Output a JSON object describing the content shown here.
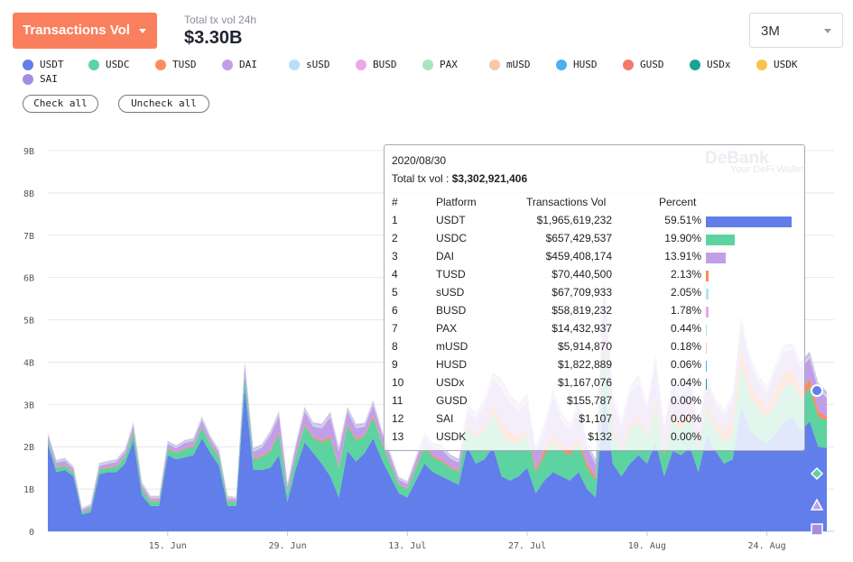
{
  "header": {
    "metric_label": "Transactions Vol",
    "total_label": "Total tx vol 24h",
    "total_value": "$3.30B",
    "range_label": "3M"
  },
  "legend": [
    {
      "name": "USDT",
      "color": "#627eea"
    },
    {
      "name": "USDC",
      "color": "#5cd3a0"
    },
    {
      "name": "TUSD",
      "color": "#fb8c5c"
    },
    {
      "name": "DAI",
      "color": "#c39ee8"
    },
    {
      "name": "sUSD",
      "color": "#b5e0f7"
    },
    {
      "name": "BUSD",
      "color": "#eda7e6"
    },
    {
      "name": "PAX",
      "color": "#a8e5c0"
    },
    {
      "name": "mUSD",
      "color": "#f8c8a8"
    },
    {
      "name": "HUSD",
      "color": "#4ab0ee"
    },
    {
      "name": "GUSD",
      "color": "#f27a6a"
    },
    {
      "name": "USDx",
      "color": "#1aa394"
    },
    {
      "name": "USDK",
      "color": "#f7c34a"
    },
    {
      "name": "SAI",
      "color": "#a48ee0"
    }
  ],
  "buttons": {
    "check_all": "Check all",
    "uncheck_all": "Uncheck all"
  },
  "chart_data": {
    "type": "area",
    "y_ticks": [
      "0",
      "1B",
      "2B",
      "3B",
      "4B",
      "5B",
      "6B",
      "7B",
      "8B",
      "9B"
    ],
    "ylim": [
      0,
      9
    ],
    "y_unit": "B",
    "x_ticks": [
      {
        "label": "15. Jun",
        "day": 14
      },
      {
        "label": "29. Jun",
        "day": 28
      },
      {
        "label": "13. Jul",
        "day": 42
      },
      {
        "label": "27. Jul",
        "day": 56
      },
      {
        "label": "10. Aug",
        "day": 70
      },
      {
        "label": "24. Aug",
        "day": 84
      }
    ],
    "grid": true,
    "series": [
      {
        "name": "USDT",
        "color": "#627eea",
        "values": [
          2.05,
          1.4,
          1.45,
          1.3,
          0.4,
          0.45,
          1.35,
          1.4,
          1.4,
          1.6,
          2.15,
          0.85,
          0.6,
          0.6,
          1.8,
          1.7,
          1.75,
          1.8,
          2.2,
          1.85,
          1.55,
          0.6,
          0.6,
          3.4,
          1.45,
          1.45,
          1.5,
          1.8,
          0.7,
          1.5,
          2.1,
          1.85,
          1.6,
          1.3,
          0.8,
          1.9,
          1.65,
          1.85,
          2.2,
          1.7,
          1.3,
          0.9,
          0.8,
          1.2,
          1.6,
          1.4,
          1.3,
          1.2,
          1.1,
          2.0,
          1.6,
          1.7,
          2.0,
          1.3,
          1.2,
          1.3,
          1.5,
          0.9,
          1.2,
          1.4,
          1.3,
          1.2,
          1.4,
          1.0,
          0.8,
          3.3,
          1.6,
          1.3,
          1.6,
          1.8,
          1.6,
          2.1,
          1.3,
          1.9,
          1.8,
          2.0,
          1.4,
          2.3,
          1.9,
          1.6,
          1.7,
          3.0,
          2.4,
          2.2,
          2.1,
          2.3,
          2.6,
          2.7,
          2.4,
          2.6,
          2.0,
          1.97
        ]
      },
      {
        "name": "USDC",
        "color": "#5cd3a0",
        "values": [
          0.1,
          0.1,
          0.1,
          0.08,
          0.05,
          0.08,
          0.1,
          0.1,
          0.12,
          0.15,
          0.2,
          0.15,
          0.1,
          0.1,
          0.15,
          0.15,
          0.2,
          0.2,
          0.25,
          0.2,
          0.2,
          0.1,
          0.1,
          0.3,
          0.25,
          0.3,
          0.4,
          0.5,
          0.2,
          0.3,
          0.4,
          0.35,
          0.5,
          0.9,
          0.7,
          0.6,
          0.5,
          0.4,
          0.5,
          0.4,
          0.3,
          0.2,
          0.2,
          0.3,
          0.4,
          0.35,
          0.35,
          0.3,
          0.3,
          0.5,
          0.6,
          0.7,
          0.8,
          1.0,
          0.9,
          0.8,
          0.8,
          0.5,
          0.6,
          0.7,
          0.6,
          0.6,
          0.7,
          0.5,
          0.4,
          1.0,
          0.7,
          0.6,
          0.8,
          0.8,
          0.6,
          0.8,
          0.5,
          0.7,
          0.6,
          0.7,
          0.5,
          0.6,
          0.5,
          0.5,
          0.6,
          0.9,
          0.8,
          0.7,
          0.6,
          0.7,
          0.8,
          0.8,
          0.7,
          0.8,
          0.7,
          0.66
        ]
      },
      {
        "name": "TUSD",
        "color": "#fb8c5c",
        "values": [
          0.02,
          0.02,
          0.02,
          0.02,
          0.01,
          0.01,
          0.02,
          0.02,
          0.02,
          0.02,
          0.03,
          0.02,
          0.02,
          0.02,
          0.02,
          0.02,
          0.02,
          0.02,
          0.03,
          0.02,
          0.02,
          0.02,
          0.01,
          0.03,
          0.03,
          0.03,
          0.03,
          0.04,
          0.02,
          0.03,
          0.04,
          0.03,
          0.04,
          0.05,
          0.04,
          0.04,
          0.04,
          0.03,
          0.04,
          0.03,
          0.03,
          0.02,
          0.02,
          0.03,
          0.04,
          0.04,
          0.04,
          0.03,
          0.03,
          0.05,
          0.08,
          0.1,
          0.2,
          0.3,
          0.25,
          0.15,
          0.1,
          0.08,
          0.1,
          0.2,
          0.15,
          0.1,
          0.15,
          0.1,
          0.08,
          0.3,
          0.15,
          0.1,
          0.15,
          0.12,
          0.1,
          0.2,
          0.1,
          0.15,
          0.2,
          0.15,
          0.1,
          0.15,
          0.2,
          0.25,
          0.3,
          0.4,
          0.3,
          0.25,
          0.2,
          0.3,
          0.35,
          0.3,
          0.25,
          0.2,
          0.15,
          0.07
        ]
      },
      {
        "name": "DAI",
        "color": "#c39ee8",
        "values": [
          0.1,
          0.1,
          0.1,
          0.08,
          0.05,
          0.06,
          0.08,
          0.08,
          0.1,
          0.1,
          0.12,
          0.08,
          0.06,
          0.06,
          0.1,
          0.1,
          0.12,
          0.12,
          0.15,
          0.12,
          0.1,
          0.06,
          0.06,
          0.2,
          0.15,
          0.2,
          0.35,
          0.4,
          0.15,
          0.2,
          0.3,
          0.25,
          0.3,
          0.45,
          0.35,
          0.3,
          0.25,
          0.2,
          0.25,
          0.2,
          0.15,
          0.1,
          0.1,
          0.15,
          0.2,
          0.2,
          0.25,
          0.2,
          0.2,
          0.3,
          0.4,
          0.5,
          0.6,
          0.8,
          0.7,
          0.6,
          0.7,
          0.4,
          0.5,
          0.9,
          0.6,
          0.5,
          0.7,
          0.4,
          0.3,
          1.3,
          0.6,
          0.5,
          0.7,
          0.8,
          0.6,
          0.9,
          0.5,
          0.7,
          0.6,
          0.7,
          0.4,
          0.5,
          0.4,
          0.4,
          0.5,
          0.6,
          0.5,
          0.4,
          0.4,
          0.5,
          0.5,
          0.5,
          0.5,
          0.5,
          0.5,
          0.46
        ]
      },
      {
        "name": "sUSD",
        "color": "#b5e0f7",
        "values": [
          0.03,
          0.03,
          0.03,
          0.02,
          0.02,
          0.02,
          0.03,
          0.03,
          0.03,
          0.03,
          0.04,
          0.03,
          0.02,
          0.02,
          0.03,
          0.03,
          0.03,
          0.03,
          0.04,
          0.03,
          0.03,
          0.02,
          0.02,
          0.05,
          0.04,
          0.04,
          0.05,
          0.05,
          0.03,
          0.04,
          0.05,
          0.05,
          0.05,
          0.06,
          0.05,
          0.05,
          0.05,
          0.04,
          0.05,
          0.04,
          0.04,
          0.03,
          0.03,
          0.04,
          0.05,
          0.05,
          0.05,
          0.04,
          0.04,
          0.06,
          0.06,
          0.07,
          0.08,
          0.1,
          0.09,
          0.08,
          0.08,
          0.06,
          0.07,
          0.08,
          0.07,
          0.07,
          0.08,
          0.06,
          0.05,
          0.12,
          0.08,
          0.07,
          0.08,
          0.09,
          0.07,
          0.09,
          0.06,
          0.08,
          0.07,
          0.08,
          0.06,
          0.07,
          0.06,
          0.06,
          0.07,
          0.08,
          0.07,
          0.07,
          0.06,
          0.07,
          0.07,
          0.07,
          0.07,
          0.07,
          0.07,
          0.07
        ]
      },
      {
        "name": "BUSD",
        "color": "#eda7e6",
        "values": [
          0.02,
          0.02,
          0.02,
          0.02,
          0.01,
          0.01,
          0.02,
          0.02,
          0.02,
          0.02,
          0.03,
          0.02,
          0.02,
          0.02,
          0.02,
          0.02,
          0.02,
          0.02,
          0.03,
          0.02,
          0.02,
          0.02,
          0.01,
          0.03,
          0.03,
          0.03,
          0.03,
          0.04,
          0.02,
          0.03,
          0.04,
          0.03,
          0.04,
          0.05,
          0.04,
          0.04,
          0.04,
          0.03,
          0.04,
          0.03,
          0.03,
          0.02,
          0.02,
          0.03,
          0.04,
          0.04,
          0.04,
          0.03,
          0.03,
          0.05,
          0.05,
          0.06,
          0.07,
          0.08,
          0.07,
          0.06,
          0.06,
          0.05,
          0.06,
          0.07,
          0.06,
          0.06,
          0.07,
          0.05,
          0.04,
          0.1,
          0.07,
          0.06,
          0.07,
          0.08,
          0.06,
          0.08,
          0.05,
          0.07,
          0.06,
          0.07,
          0.05,
          0.06,
          0.05,
          0.05,
          0.06,
          0.07,
          0.06,
          0.06,
          0.05,
          0.06,
          0.06,
          0.06,
          0.06,
          0.06,
          0.06,
          0.06
        ]
      },
      {
        "name": "PAX",
        "color": "#a8e5c0",
        "values": [
          0.01,
          0.01,
          0.01,
          0.01,
          0.01,
          0.01,
          0.01,
          0.01,
          0.01,
          0.01,
          0.01,
          0.01,
          0.01,
          0.01,
          0.01,
          0.01,
          0.01,
          0.01,
          0.01,
          0.01,
          0.01,
          0.01,
          0.01,
          0.01,
          0.01,
          0.01,
          0.01,
          0.01,
          0.01,
          0.01,
          0.01,
          0.01,
          0.01,
          0.01,
          0.01,
          0.01,
          0.01,
          0.01,
          0.01,
          0.01,
          0.01,
          0.01,
          0.01,
          0.01,
          0.01,
          0.01,
          0.01,
          0.01,
          0.01,
          0.02,
          0.02,
          0.02,
          0.02,
          0.02,
          0.02,
          0.02,
          0.02,
          0.02,
          0.02,
          0.02,
          0.02,
          0.02,
          0.02,
          0.02,
          0.02,
          0.02,
          0.02,
          0.02,
          0.02,
          0.02,
          0.02,
          0.02,
          0.02,
          0.02,
          0.02,
          0.02,
          0.02,
          0.02,
          0.02,
          0.02,
          0.02,
          0.02,
          0.02,
          0.02,
          0.02,
          0.02,
          0.02,
          0.02,
          0.02,
          0.02,
          0.02,
          0.01
        ]
      },
      {
        "name": "mUSD",
        "color": "#f8c8a8",
        "values": [
          0.005,
          0.005,
          0.005,
          0.005,
          0.005,
          0.005,
          0.005,
          0.005,
          0.005,
          0.005,
          0.005,
          0.005,
          0.005,
          0.005,
          0.005,
          0.005,
          0.005,
          0.005,
          0.005,
          0.005,
          0.005,
          0.005,
          0.005,
          0.005,
          0.005,
          0.005,
          0.005,
          0.005,
          0.005,
          0.005,
          0.005,
          0.005,
          0.005,
          0.005,
          0.005,
          0.005,
          0.005,
          0.005,
          0.005,
          0.005,
          0.005,
          0.005,
          0.005,
          0.005,
          0.005,
          0.005,
          0.005,
          0.005,
          0.005,
          0.008,
          0.008,
          0.008,
          0.008,
          0.008,
          0.008,
          0.008,
          0.008,
          0.008,
          0.008,
          0.008,
          0.008,
          0.008,
          0.008,
          0.008,
          0.008,
          0.008,
          0.008,
          0.008,
          0.008,
          0.008,
          0.008,
          0.008,
          0.008,
          0.008,
          0.008,
          0.008,
          0.008,
          0.008,
          0.008,
          0.008,
          0.008,
          0.008,
          0.008,
          0.008,
          0.008,
          0.008,
          0.008,
          0.008,
          0.008,
          0.008,
          0.008,
          0.006
        ]
      },
      {
        "name": "HUSD",
        "color": "#4ab0ee",
        "values": [
          0.002,
          0.002,
          0.002,
          0.002,
          0.002,
          0.002,
          0.002,
          0.002,
          0.002,
          0.002,
          0.002,
          0.002,
          0.002,
          0.002,
          0.002,
          0.002,
          0.002,
          0.002,
          0.002,
          0.002,
          0.002,
          0.002,
          0.002,
          0.002,
          0.002,
          0.002,
          0.002,
          0.002,
          0.002,
          0.002,
          0.002,
          0.002,
          0.002,
          0.002,
          0.002,
          0.002,
          0.002,
          0.002,
          0.002,
          0.002,
          0.002,
          0.002,
          0.002,
          0.002,
          0.002,
          0.002,
          0.002,
          0.002,
          0.002,
          0.002,
          0.002,
          0.002,
          0.002,
          0.002,
          0.002,
          0.002,
          0.002,
          0.002,
          0.002,
          0.002,
          0.002,
          0.002,
          0.002,
          0.002,
          0.002,
          0.002,
          0.002,
          0.002,
          0.002,
          0.002,
          0.002,
          0.002,
          0.002,
          0.002,
          0.002,
          0.002,
          0.002,
          0.002,
          0.002,
          0.002,
          0.002,
          0.002,
          0.002,
          0.002,
          0.002,
          0.002,
          0.002,
          0.002,
          0.002,
          0.002,
          0.002,
          0.002
        ]
      }
    ],
    "tooltip": {
      "date": "2020/08/30",
      "total_label": "Total tx vol : ",
      "total_value": "$3,302,921,406",
      "headers": {
        "rank": "#",
        "platform": "Platform",
        "volume": "Transactions Vol",
        "percent": "Percent"
      },
      "rows": [
        {
          "rank": "1",
          "platform": "USDT",
          "volume": "$1,965,619,232",
          "percent": "59.51%",
          "pct": 59.51,
          "color": "#627eea"
        },
        {
          "rank": "2",
          "platform": "USDC",
          "volume": "$657,429,537",
          "percent": "19.90%",
          "pct": 19.9,
          "color": "#5cd3a0"
        },
        {
          "rank": "3",
          "platform": "DAI",
          "volume": "$459,408,174",
          "percent": "13.91%",
          "pct": 13.91,
          "color": "#c39ee8"
        },
        {
          "rank": "4",
          "platform": "TUSD",
          "volume": "$70,440,500",
          "percent": "2.13%",
          "pct": 2.13,
          "color": "#fb8c5c"
        },
        {
          "rank": "5",
          "platform": "sUSD",
          "volume": "$67,709,933",
          "percent": "2.05%",
          "pct": 2.05,
          "color": "#b5e0f7"
        },
        {
          "rank": "6",
          "platform": "BUSD",
          "volume": "$58,819,232",
          "percent": "1.78%",
          "pct": 1.78,
          "color": "#eda7e6"
        },
        {
          "rank": "7",
          "platform": "PAX",
          "volume": "$14,432,937",
          "percent": "0.44%",
          "pct": 0.44,
          "color": "#a8e5c0"
        },
        {
          "rank": "8",
          "platform": "mUSD",
          "volume": "$5,914,870",
          "percent": "0.18%",
          "pct": 0.18,
          "color": "#f8c8a8"
        },
        {
          "rank": "9",
          "platform": "HUSD",
          "volume": "$1,822,889",
          "percent": "0.06%",
          "pct": 0.06,
          "color": "#4ab0ee"
        },
        {
          "rank": "10",
          "platform": "USDx",
          "volume": "$1,167,076",
          "percent": "0.04%",
          "pct": 0.04,
          "color": "#1aa394"
        },
        {
          "rank": "11",
          "platform": "GUSD",
          "volume": "$155,787",
          "percent": "0.00%",
          "pct": 0.0,
          "color": "#f27a6a"
        },
        {
          "rank": "12",
          "platform": "SAI",
          "volume": "$1,107",
          "percent": "0.00%",
          "pct": 0.0,
          "color": "#a48ee0"
        },
        {
          "rank": "13",
          "platform": "USDK",
          "volume": "$132",
          "percent": "0.00%",
          "pct": 0.0,
          "color": "#f7c34a"
        }
      ]
    },
    "watermark": {
      "brand": "DeBank",
      "tagline": "Your DeFi Wallet"
    }
  }
}
